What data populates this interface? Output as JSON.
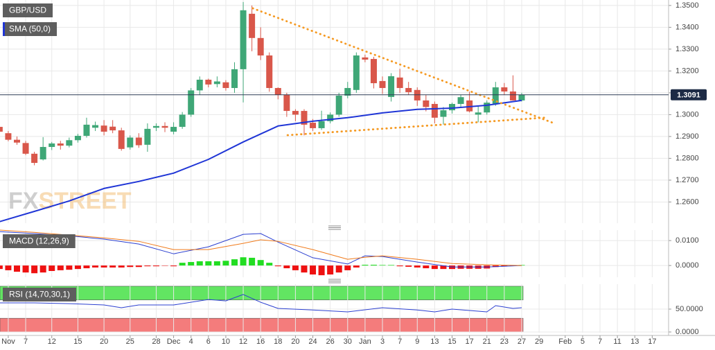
{
  "chart_data": [
    {
      "type": "candlestick",
      "title": "GBP/USD",
      "xlim": [
        0.05,
        76.88
      ],
      "ylim": [
        1.2503,
        1.3525
      ],
      "yticks": [
        {
          "value": 1.26,
          "label": "1.2600"
        },
        {
          "value": 1.27,
          "label": "1.2700"
        },
        {
          "value": 1.28,
          "label": "1.2800"
        },
        {
          "value": 1.29,
          "label": "1.2900"
        },
        {
          "value": 1.3,
          "label": "1.3000"
        },
        {
          "value": 1.31,
          "label": "1.3100"
        },
        {
          "value": 1.32,
          "label": "1.3200"
        },
        {
          "value": 1.33,
          "label": "1.3300"
        },
        {
          "value": 1.34,
          "label": "1.3400"
        },
        {
          "value": 1.35,
          "label": "1.3500"
        }
      ],
      "grid": true,
      "up_color": "#3fa777",
      "down_color": "#d9574a",
      "open": [
        1.2944,
        1.2915,
        1.2885,
        1.287,
        1.2821,
        1.2795,
        1.2852,
        1.2868,
        1.2858,
        1.2883,
        1.2903,
        1.294,
        1.295,
        1.2945,
        1.2928,
        1.285,
        1.2895,
        1.2862,
        1.294,
        1.2948,
        1.2922,
        1.2944,
        1.3,
        1.3111,
        1.316,
        1.314,
        1.3148,
        1.3122,
        1.3208,
        1.3462,
        1.3351,
        1.3271,
        1.3122,
        1.309,
        1.3017,
        1.3017,
        1.2963,
        1.2938,
        1.297,
        1.3,
        1.3087,
        1.3113,
        1.3262,
        1.3255,
        1.3154,
        1.3081,
        1.317,
        1.3122,
        1.3113,
        1.3065,
        1.3049,
        1.299,
        1.302,
        1.3049,
        1.3065,
        1.3,
        1.301,
        1.305,
        1.3125,
        1.3106,
        1.3065
      ],
      "high": [
        1.296,
        1.2925,
        1.29,
        1.288,
        1.283,
        1.2897,
        1.2875,
        1.288,
        1.2895,
        1.2912,
        1.2986,
        1.2968,
        1.2975,
        1.2975,
        1.294,
        1.2905,
        1.2915,
        1.296,
        1.296,
        1.2965,
        1.2965,
        1.3012,
        1.3122,
        1.3175,
        1.3165,
        1.3175,
        1.3158,
        1.324,
        1.3516,
        1.35,
        1.34,
        1.3285,
        1.3125,
        1.31,
        1.3025,
        1.3025,
        1.298,
        1.3018,
        1.301,
        1.31,
        1.315,
        1.3285,
        1.3275,
        1.3265,
        1.3175,
        1.319,
        1.321,
        1.315,
        1.3125,
        1.309,
        1.306,
        1.3035,
        1.3055,
        1.309,
        1.3105,
        1.304,
        1.3065,
        1.315,
        1.3145,
        1.318,
        1.31
      ],
      "low": [
        1.2915,
        1.2878,
        1.2862,
        1.2815,
        1.2768,
        1.279,
        1.2838,
        1.284,
        1.285,
        1.2872,
        1.2895,
        1.2925,
        1.2905,
        1.2915,
        1.2835,
        1.284,
        1.2848,
        1.283,
        1.2925,
        1.292,
        1.291,
        1.2935,
        1.299,
        1.309,
        1.3125,
        1.3125,
        1.311,
        1.31,
        1.3056,
        1.329,
        1.325,
        1.3105,
        1.307,
        1.299,
        1.297,
        1.2905,
        1.2925,
        1.293,
        1.296,
        1.299,
        1.3075,
        1.31,
        1.324,
        1.312,
        1.3095,
        1.306,
        1.31,
        1.309,
        1.304,
        1.3015,
        1.296,
        1.2955,
        1.3005,
        1.3035,
        1.301,
        1.2965,
        1.3,
        1.304,
        1.309,
        1.3065,
        1.306
      ],
      "close": [
        1.2922,
        1.2885,
        1.2872,
        1.2821,
        1.2779,
        1.2852,
        1.2868,
        1.2858,
        1.2883,
        1.2903,
        1.2954,
        1.2952,
        1.2922,
        1.2928,
        1.2843,
        1.2895,
        1.286,
        1.2935,
        1.2948,
        1.294,
        1.2944,
        1.3,
        1.3111,
        1.316,
        1.3138,
        1.3152,
        1.3122,
        1.3208,
        1.3478,
        1.3351,
        1.3271,
        1.3122,
        1.309,
        1.3017,
        1.3,
        1.2954,
        1.2938,
        1.297,
        1.3,
        1.3087,
        1.3122,
        1.3271,
        1.3252,
        1.3144,
        1.3122,
        1.3176,
        1.3122,
        1.3103,
        1.3065,
        1.3035,
        1.2986,
        1.302,
        1.3049,
        1.308,
        1.3015,
        1.301,
        1.3055,
        1.3125,
        1.3106,
        1.3065,
        1.3091
      ],
      "series": [
        {
          "name": "SMA (50,0)",
          "color": "#1f35d6",
          "x": [
            0,
            4,
            8,
            12,
            16,
            20,
            24,
            28,
            32,
            36,
            40,
            44,
            48,
            52,
            56,
            60
          ],
          "values": [
            1.251,
            1.2557,
            1.2605,
            1.2662,
            1.2694,
            1.2732,
            1.2795,
            1.2875,
            1.2948,
            1.297,
            1.2986,
            1.3008,
            1.3024,
            1.303,
            1.3043,
            1.3065
          ]
        }
      ],
      "trendline_color": "#f59a23",
      "trendlines": [
        {
          "x": [
            29.1,
            63.75
          ],
          "values": [
            1.3487,
            1.296
          ]
        },
        {
          "x": [
            33.1,
            62.56
          ],
          "values": [
            1.2906,
            1.2986
          ]
        }
      ],
      "last_price": 1.3091,
      "watermark": {
        "prefix": "FX",
        "suffix": "STREET"
      }
    },
    {
      "type": "macd",
      "title": "MACD (12,26,9)",
      "xlim": [
        0.05,
        76.88
      ],
      "ylim": [
        -0.0047,
        0.0142
      ],
      "yticks": [
        {
          "value": 0,
          "label": "0.0000"
        },
        {
          "value": 0.01,
          "label": "0.0100"
        }
      ],
      "grid": true,
      "positive_color": "#22dd22",
      "negative_color": "#ee1111",
      "histogram": [
        -0.0014,
        -0.0019,
        -0.0025,
        -0.0028,
        -0.0031,
        -0.0028,
        -0.0022,
        -0.0019,
        -0.0017,
        -0.0014,
        -0.0011,
        -0.0008,
        -0.0008,
        -0.0008,
        -0.0008,
        -0.0006,
        -0.0006,
        -0.0003,
        -0.0003,
        -0.0001,
        -0.0003,
        0.0011,
        0.0014,
        0.0017,
        0.0017,
        0.0017,
        0.0019,
        0.0025,
        0.0033,
        0.0031,
        0.0022,
        0.0011,
        -0.0003,
        -0.0011,
        -0.0019,
        -0.0028,
        -0.0036,
        -0.0039,
        -0.0036,
        -0.0028,
        -0.0019,
        -0.0008,
        0.0003,
        0.0003,
        0.0002,
        0.0002,
        -0.0003,
        -0.0005,
        -0.0008,
        -0.0011,
        -0.0014,
        -0.0014,
        -0.0014,
        -0.0013,
        -0.0013,
        -0.0013,
        -0.0012,
        -0.0006,
        -0.0003,
        -0.0001,
        0.0002
      ],
      "series": [
        {
          "name": "MACD",
          "color": "#2b3fd0",
          "x": [
            0,
            4,
            8,
            12,
            16,
            20,
            24,
            28,
            30,
            32,
            36,
            40,
            42,
            44,
            48,
            52,
            56,
            60
          ],
          "values": [
            0.0136,
            0.0128,
            0.0119,
            0.0106,
            0.0086,
            0.0047,
            0.0075,
            0.0125,
            0.0128,
            0.0094,
            0.0031,
            0.0006,
            0.0039,
            0.0036,
            0.0014,
            -0.0006,
            -0.0006,
            0
          ]
        },
        {
          "name": "Signal",
          "color": "#f07a1a",
          "x": [
            0,
            4,
            8,
            12,
            16,
            20,
            24,
            28,
            30,
            32,
            36,
            40,
            42,
            44,
            48,
            52,
            56,
            60
          ],
          "values": [
            0.0142,
            0.0133,
            0.0122,
            0.0111,
            0.0097,
            0.0064,
            0.0064,
            0.0089,
            0.0103,
            0.0097,
            0.0064,
            0.0025,
            0.0033,
            0.0039,
            0.0025,
            0.0008,
            0.0003,
            0
          ]
        }
      ]
    },
    {
      "type": "rsi",
      "title": "RSI (14,70,30,1)",
      "xlim": [
        0.05,
        76.88
      ],
      "ylim": [
        -1.5,
        104.5
      ],
      "yticks": [
        {
          "value": 0,
          "label": "0.0000"
        },
        {
          "value": 50,
          "label": "50.0000"
        }
      ],
      "grid": true,
      "bands": [
        {
          "from": 70,
          "to": 100,
          "color": "#62e562"
        },
        {
          "from": 0,
          "to": 30,
          "color": "#f47c7c"
        }
      ],
      "series": [
        {
          "name": "RSI",
          "color": "#2b3fd0",
          "x": [
            0,
            4,
            8,
            12,
            14,
            16,
            20,
            24,
            26,
            28,
            30,
            32,
            36,
            40,
            44,
            48,
            50,
            52,
            56,
            57,
            59,
            60
          ],
          "values": [
            63.6,
            63.6,
            62,
            59,
            53,
            59,
            59,
            71,
            68,
            82,
            65,
            51.5,
            48,
            44,
            53,
            48,
            44,
            50,
            44,
            57.6,
            51.5,
            53
          ]
        }
      ],
      "xticks": [
        {
          "value": 1,
          "label": "Nov"
        },
        {
          "value": 3,
          "label": "7"
        },
        {
          "value": 6,
          "label": "12"
        },
        {
          "value": 9,
          "label": "15"
        },
        {
          "value": 12,
          "label": "20"
        },
        {
          "value": 15,
          "label": "25"
        },
        {
          "value": 18,
          "label": "28"
        },
        {
          "value": 20,
          "label": "Dec"
        },
        {
          "value": 22,
          "label": "4"
        },
        {
          "value": 24,
          "label": "6"
        },
        {
          "value": 26,
          "label": "10"
        },
        {
          "value": 28,
          "label": "12"
        },
        {
          "value": 30,
          "label": "16"
        },
        {
          "value": 32,
          "label": "18"
        },
        {
          "value": 34,
          "label": "20"
        },
        {
          "value": 36,
          "label": "24"
        },
        {
          "value": 38,
          "label": "26"
        },
        {
          "value": 40,
          "label": "30"
        },
        {
          "value": 42,
          "label": "Jan"
        },
        {
          "value": 44,
          "label": "3"
        },
        {
          "value": 46,
          "label": "7"
        },
        {
          "value": 48,
          "label": "9"
        },
        {
          "value": 50,
          "label": "13"
        },
        {
          "value": 52,
          "label": "15"
        },
        {
          "value": 54,
          "label": "17"
        },
        {
          "value": 56,
          "label": "21"
        },
        {
          "value": 58,
          "label": "23"
        },
        {
          "value": 60,
          "label": "27"
        },
        {
          "value": 62,
          "label": "29"
        },
        {
          "value": 65,
          "label": "Feb"
        },
        {
          "value": 67,
          "label": "5"
        },
        {
          "value": 69,
          "label": "7"
        },
        {
          "value": 71,
          "label": "11"
        },
        {
          "value": 73,
          "label": "13"
        },
        {
          "value": 75,
          "label": "17"
        }
      ]
    }
  ]
}
